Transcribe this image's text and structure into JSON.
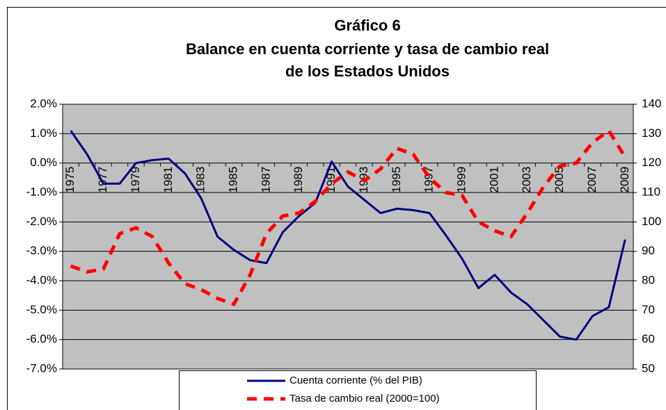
{
  "chart_data": {
    "type": "line",
    "title": [
      "Gráfico 6",
      "Balance en cuenta corriente y tasa de cambio real",
      "de los Estados Unidos"
    ],
    "categories": [
      "1975",
      null,
      "1977",
      null,
      "1979",
      null,
      "1981",
      null,
      "1983",
      null,
      "1985",
      null,
      "1987",
      null,
      "1989",
      null,
      "1991",
      null,
      "1993",
      null,
      "1995",
      null,
      "1997",
      null,
      "1999",
      null,
      "2001",
      null,
      "2003",
      null,
      "2005",
      null,
      "2007",
      null,
      "2009"
    ],
    "series": [
      {
        "name": "Cuenta corriente (% del PIB)",
        "color": "#000080",
        "axis": "y",
        "values": [
          1.1,
          0.3,
          -0.7,
          -0.7,
          0.0,
          0.1,
          0.15,
          -0.35,
          -1.2,
          -2.5,
          -2.95,
          -3.3,
          -3.4,
          -2.35,
          -1.8,
          -1.35,
          0.05,
          -0.8,
          -1.25,
          -1.7,
          -1.55,
          -1.6,
          -1.7,
          -2.45,
          -3.25,
          -4.25,
          -3.8,
          -4.4,
          -4.8,
          -5.35,
          -5.9,
          -6.0,
          -5.2,
          -4.9,
          -2.6
        ]
      },
      {
        "name": "Tasa de cambio real (2000=100)",
        "color": "#ff0000",
        "axis": "y2",
        "dashed": true,
        "values": [
          85,
          83,
          84,
          96,
          98,
          95,
          86,
          79,
          77,
          74,
          72,
          82,
          96,
          102,
          103,
          107,
          113,
          117,
          114,
          118,
          125,
          123,
          115,
          110,
          109,
          100,
          97,
          95,
          103,
          112,
          119,
          120,
          127,
          131,
          122
        ]
      }
    ],
    "ylim": [
      -7,
      2
    ],
    "yticks": [
      {
        "value": -7,
        "label": "-7.0%"
      },
      {
        "value": -6,
        "label": "-6.0%"
      },
      {
        "value": -5,
        "label": "-5.0%"
      },
      {
        "value": -4,
        "label": "-4.0%"
      },
      {
        "value": -3,
        "label": "-3.0%"
      },
      {
        "value": -2,
        "label": "-2.0%"
      },
      {
        "value": -1,
        "label": "-1.0%"
      },
      {
        "value": 0,
        "label": "0.0%"
      },
      {
        "value": 1,
        "label": "1.0%"
      },
      {
        "value": 2,
        "label": "2.0%"
      }
    ],
    "y2lim": [
      50,
      140
    ],
    "y2ticks": [
      50,
      60,
      70,
      80,
      90,
      100,
      110,
      120,
      130,
      140
    ],
    "grid": true,
    "legend": "bottom",
    "background": "#c0c0c0"
  }
}
